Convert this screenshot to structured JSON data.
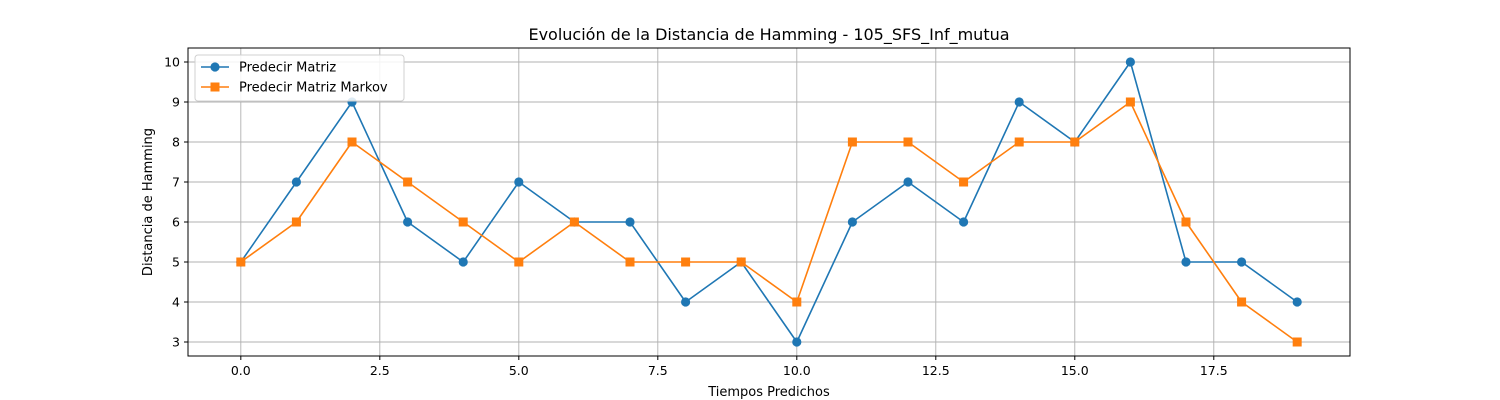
{
  "chart_data": {
    "type": "line",
    "title": "Evolución de la Distancia de Hamming - 105_SFS_Inf_mutua",
    "xlabel": "Tiempos Predichos",
    "ylabel": "Distancia de Hamming",
    "xlim": [
      -0.95,
      19.95
    ],
    "ylim": [
      2.65,
      10.35
    ],
    "xticks": [
      0.0,
      2.5,
      5.0,
      7.5,
      10.0,
      12.5,
      15.0,
      17.5
    ],
    "xtick_labels": [
      "0.0",
      "2.5",
      "5.0",
      "7.5",
      "10.0",
      "12.5",
      "15.0",
      "17.5"
    ],
    "yticks": [
      3,
      4,
      5,
      6,
      7,
      8,
      9,
      10
    ],
    "ytick_labels": [
      "3",
      "4",
      "5",
      "6",
      "7",
      "8",
      "9",
      "10"
    ],
    "grid": true,
    "legend_position": "top-left",
    "x": [
      0,
      1,
      2,
      3,
      4,
      5,
      6,
      7,
      8,
      9,
      10,
      11,
      12,
      13,
      14,
      15,
      16,
      17,
      18,
      19
    ],
    "series": [
      {
        "name": "Predecir Matriz",
        "color": "#1f77b4",
        "marker": "circle",
        "values": [
          5,
          7,
          9,
          6,
          5,
          7,
          6,
          6,
          4,
          5,
          3,
          6,
          7,
          6,
          9,
          8,
          10,
          5,
          5,
          4
        ]
      },
      {
        "name": "Predecir Matriz Markov",
        "color": "#ff7f0e",
        "marker": "square",
        "values": [
          5,
          6,
          8,
          7,
          6,
          5,
          6,
          5,
          5,
          5,
          4,
          8,
          8,
          7,
          8,
          8,
          9,
          6,
          4,
          3
        ]
      }
    ]
  }
}
